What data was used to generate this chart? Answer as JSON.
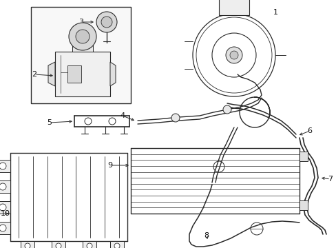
{
  "bg_color": "#ffffff",
  "line_color": "#2a2a2a",
  "label_color": "#111111",
  "lw": 0.8,
  "fig_w": 4.89,
  "fig_h": 3.6,
  "dpi": 100
}
